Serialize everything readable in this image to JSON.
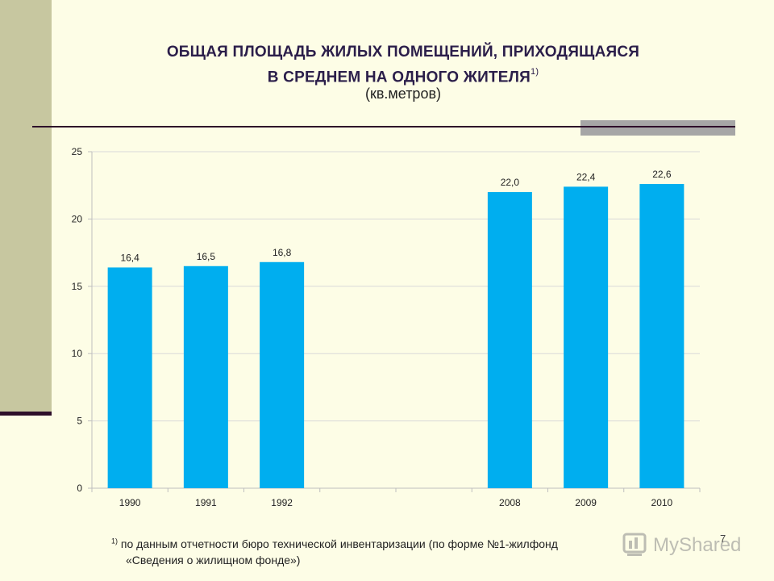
{
  "slide": {
    "title_line1": "ОБЩАЯ ПЛОЩАДЬ ЖИЛЫХ ПОМЕЩЕНИЙ, ПРИХОДЯЩАЯСЯ",
    "title_line2": "В СРЕДНЕМ НА ОДНОГО ЖИТЕЛЯ",
    "title_sup": "1)",
    "subtitle": "(кв.метров)",
    "footnote_sup": "1)",
    "footnote_line1": " по данным отчетности бюро технической инвентаризации (по форме №1-жилфонд",
    "footnote_line2": "«Сведения о жилищном фонде»)",
    "page_number": "7",
    "watermark": "MyShared"
  },
  "colors": {
    "bar": "#00aeef",
    "background": "#fdfde6",
    "side_band": "#c7c7a0",
    "rule": "#2e0f2a",
    "grid": "#d9d9d9"
  },
  "chart_data": {
    "type": "bar",
    "categories": [
      "1990",
      "1991",
      "1992",
      "",
      "",
      "2008",
      "2009",
      "2010"
    ],
    "values": [
      16.4,
      16.5,
      16.8,
      null,
      null,
      22.0,
      22.4,
      22.6
    ],
    "data_labels": [
      "16,4",
      "16,5",
      "16,8",
      "",
      "",
      "22,0",
      "22,4",
      "22,6"
    ],
    "ylim": [
      0,
      25
    ],
    "yticks": [
      "0",
      "5",
      "10",
      "15",
      "20",
      "25"
    ],
    "ytick_values": [
      0,
      5,
      10,
      15,
      20,
      25
    ],
    "grid": true,
    "legend": "none"
  }
}
